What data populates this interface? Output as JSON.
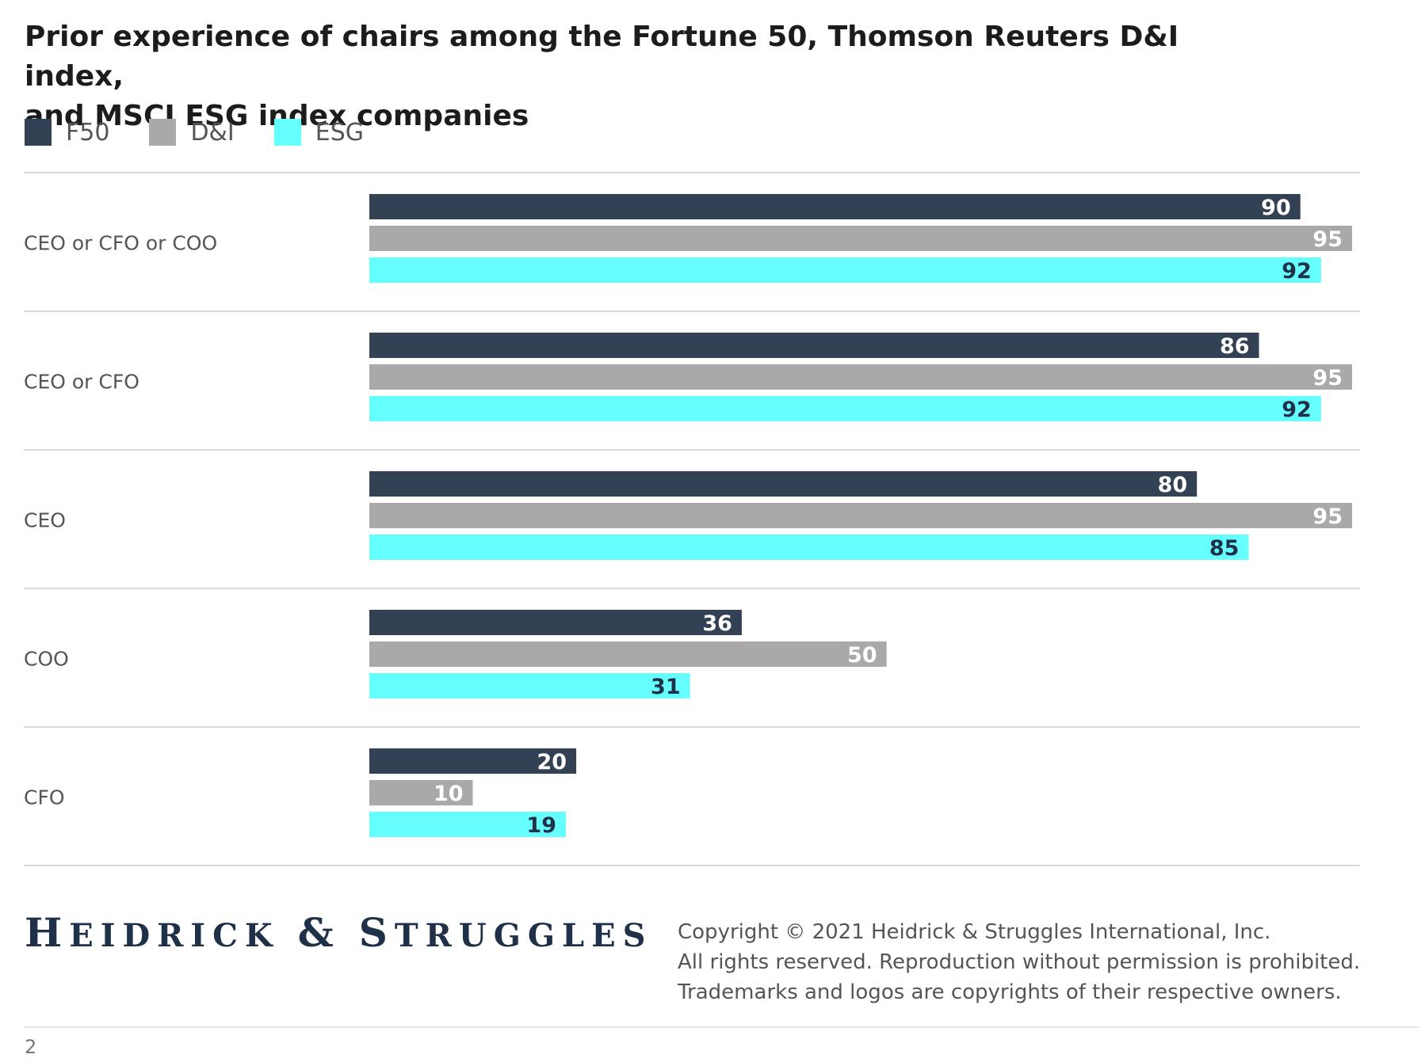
{
  "title_line1": "Prior experience of chairs among the Fortune 50, Thomson Reuters D&I index,",
  "title_line2": "and MSCI ESG index companies",
  "legend": [
    {
      "label": "F50",
      "color": "#324154"
    },
    {
      "label": "D&I",
      "color": "#a9a9a9"
    },
    {
      "label": "ESG",
      "color": "#66ffff"
    }
  ],
  "chart_data": {
    "type": "bar",
    "orientation": "horizontal",
    "categories": [
      "CEO or CFO or COO",
      "CEO or CFO",
      "CEO",
      "COO",
      "CFO"
    ],
    "series": [
      {
        "name": "F50",
        "color": "#324154",
        "label_color": "#ffffff",
        "values": [
          90,
          86,
          80,
          36,
          20
        ]
      },
      {
        "name": "D&I",
        "color": "#a9a9a9",
        "label_color": "#ffffff",
        "values": [
          95,
          95,
          95,
          50,
          10
        ]
      },
      {
        "name": "ESG",
        "color": "#66ffff",
        "label_color": "#1f3148",
        "values": [
          92,
          92,
          85,
          31,
          19
        ]
      }
    ],
    "xlim": [
      0,
      95
    ],
    "grid": "horizontal separators between groups",
    "legend_position": "top-left"
  },
  "footer": {
    "logo_word1_cap": "H",
    "logo_word1_rest": "EIDRICK",
    "logo_amp": "&",
    "logo_word2_cap": "S",
    "logo_word2_rest": "TRUGGLES",
    "copyright_lines": [
      "Copyright © 2021 Heidrick & Struggles International, Inc.",
      "All rights reserved. Reproduction without permission is prohibited.",
      "Trademarks and logos are copyrights of their respective owners."
    ],
    "page_number": "2"
  }
}
